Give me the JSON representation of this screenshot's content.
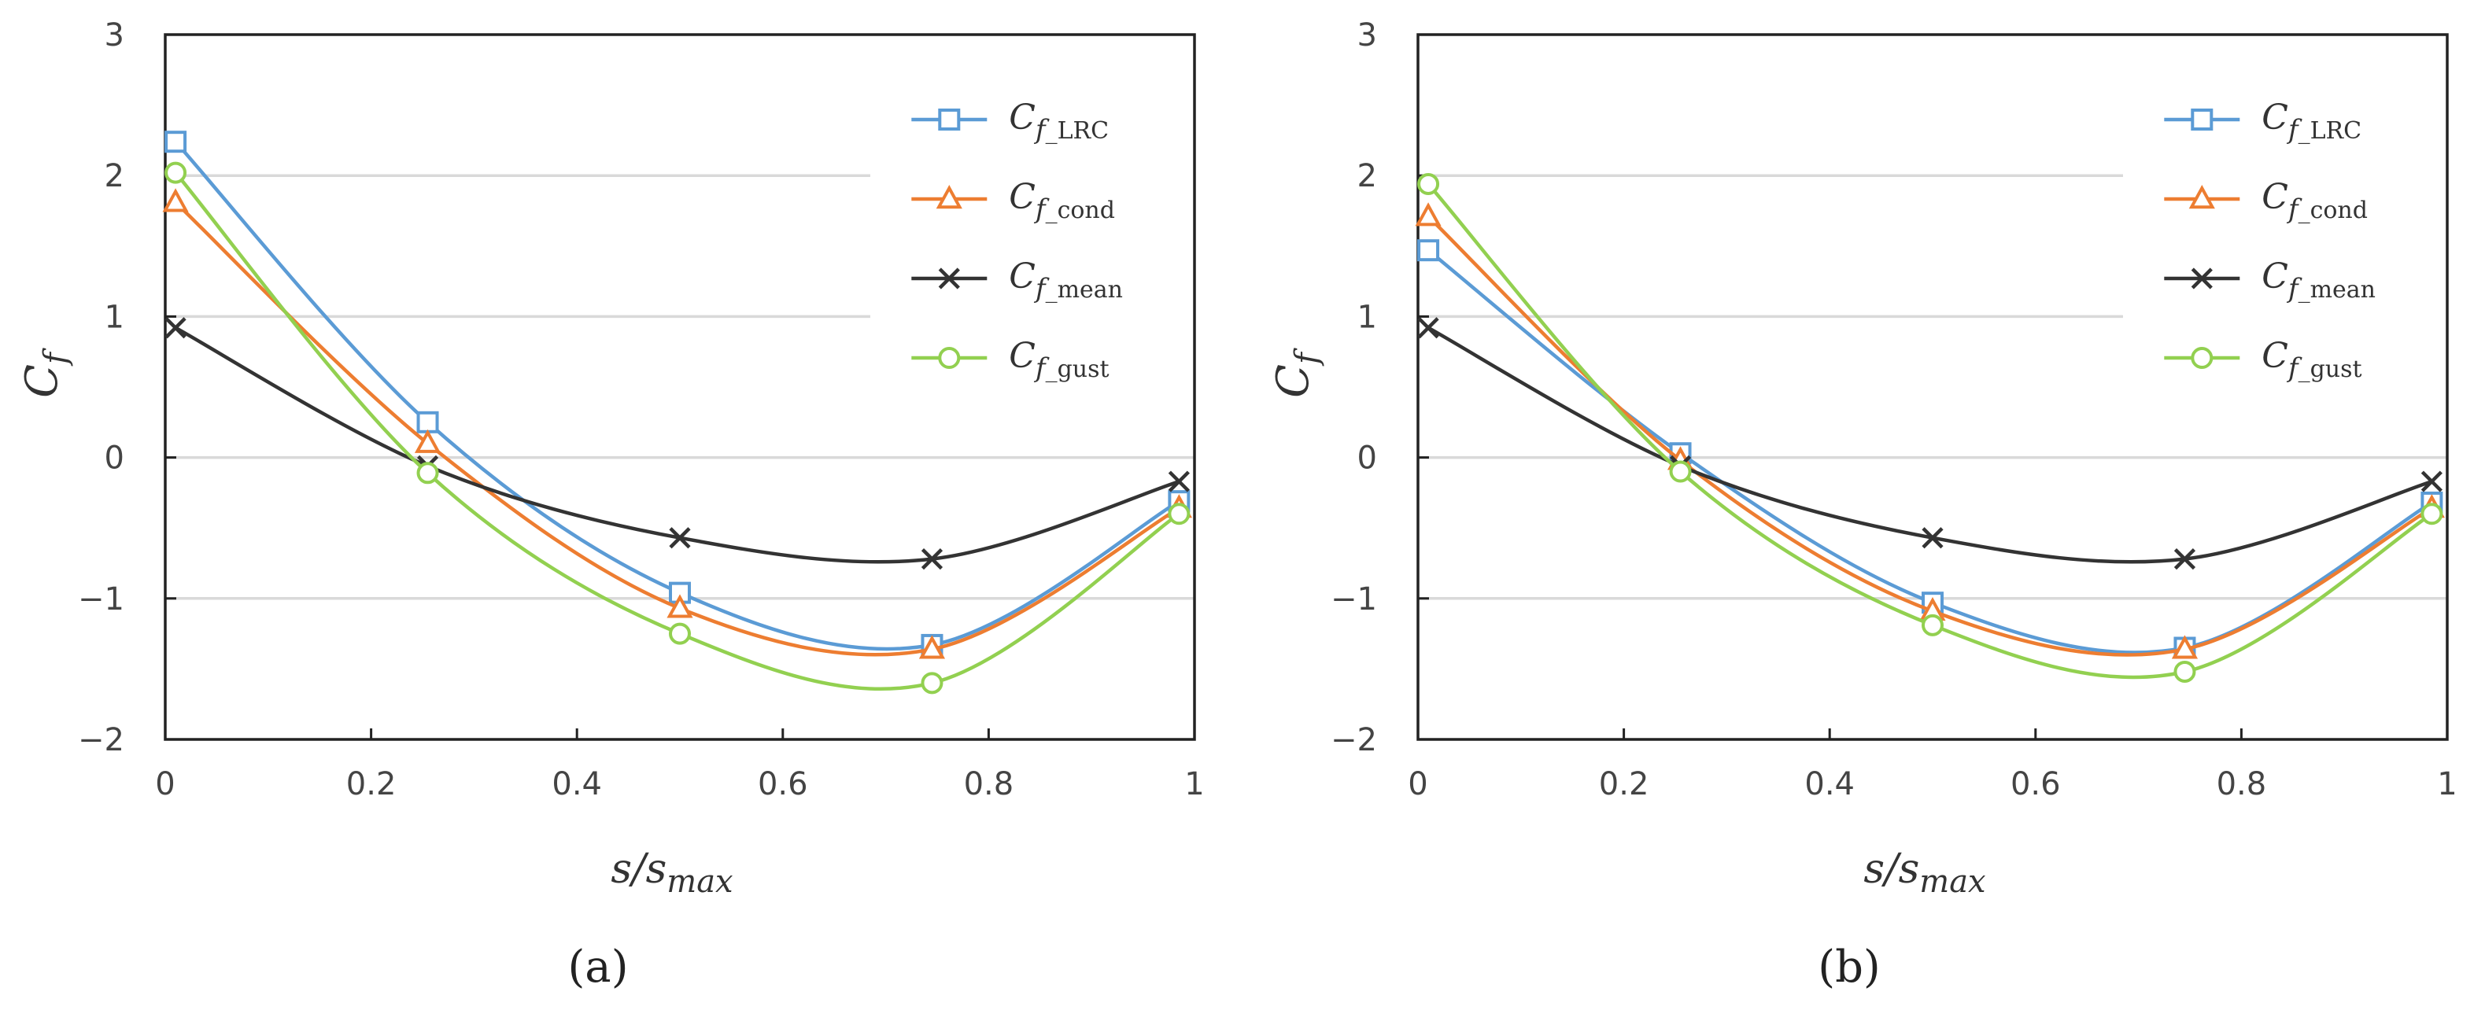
{
  "chart_data": [
    {
      "type": "line",
      "panel_label": "(a)",
      "xlabel": {
        "base": "s/s",
        "sub": "max"
      },
      "ylabel": {
        "base": "C",
        "sub": "f"
      },
      "xlim": [
        0,
        1
      ],
      "ylim": [
        -2,
        3
      ],
      "xticks": [
        0,
        0.2,
        0.4,
        0.6,
        0.8,
        1
      ],
      "xtick_labels": [
        "0",
        "0.2",
        "0.4",
        "0.6",
        "0.8",
        "1"
      ],
      "yticks": [
        -2,
        -1,
        0,
        1,
        2,
        3
      ],
      "ytick_labels": [
        "−2",
        "−1",
        "0",
        "1",
        "2",
        "3"
      ],
      "grid": "horizontal",
      "legend_position": "top-right",
      "series": [
        {
          "name": "C_f_LRC",
          "label_base": "C",
          "label_sub": "f",
          "label_tag": "_LRC",
          "color": "#5B9BD5",
          "marker": "square",
          "x": [
            0.01,
            0.255,
            0.5,
            0.745,
            0.985
          ],
          "values": [
            2.24,
            0.25,
            -0.96,
            -1.33,
            -0.31
          ]
        },
        {
          "name": "C_f_cond",
          "label_base": "C",
          "label_sub": "f",
          "label_tag": "_cond",
          "color": "#ED7D31",
          "marker": "triangle",
          "x": [
            0.01,
            0.255,
            0.5,
            0.745,
            0.985
          ],
          "values": [
            1.81,
            0.1,
            -1.07,
            -1.36,
            -0.36
          ]
        },
        {
          "name": "C_f_mean",
          "label_base": "C",
          "label_sub": "f",
          "label_tag": "_mean",
          "color": "#333333",
          "marker": "x",
          "x": [
            0.01,
            0.255,
            0.5,
            0.745,
            0.985
          ],
          "values": [
            0.92,
            -0.06,
            -0.57,
            -0.72,
            -0.17
          ]
        },
        {
          "name": "C_f_gust",
          "label_base": "C",
          "label_sub": "f",
          "label_tag": "_gust",
          "color": "#92D050",
          "marker": "circle",
          "x": [
            0.01,
            0.255,
            0.5,
            0.745,
            0.985
          ],
          "values": [
            2.02,
            -0.11,
            -1.25,
            -1.6,
            -0.4
          ]
        }
      ]
    },
    {
      "type": "line",
      "panel_label": "(b)",
      "xlabel": {
        "base": "s/s",
        "sub": "max"
      },
      "ylabel": {
        "base": "C",
        "sub": "f"
      },
      "xlim": [
        0,
        1
      ],
      "ylim": [
        -2,
        3
      ],
      "xticks": [
        0,
        0.2,
        0.4,
        0.6,
        0.8,
        1
      ],
      "xtick_labels": [
        "0",
        "0.2",
        "0.4",
        "0.6",
        "0.8",
        "1"
      ],
      "yticks": [
        -2,
        -1,
        0,
        1,
        2,
        3
      ],
      "ytick_labels": [
        "−2",
        "−1",
        "0",
        "1",
        "2",
        "3"
      ],
      "grid": "horizontal",
      "legend_position": "top-right",
      "series": [
        {
          "name": "C_f_LRC",
          "label_base": "C",
          "label_sub": "f",
          "label_tag": "_LRC",
          "color": "#5B9BD5",
          "marker": "square",
          "x": [
            0.01,
            0.255,
            0.5,
            0.745,
            0.985
          ],
          "values": [
            1.47,
            0.03,
            -1.03,
            -1.35,
            -0.32
          ]
        },
        {
          "name": "C_f_cond",
          "label_base": "C",
          "label_sub": "f",
          "label_tag": "_cond",
          "color": "#ED7D31",
          "marker": "triangle",
          "x": [
            0.01,
            0.255,
            0.5,
            0.745,
            0.985
          ],
          "values": [
            1.71,
            -0.02,
            -1.09,
            -1.36,
            -0.36
          ]
        },
        {
          "name": "C_f_mean",
          "label_base": "C",
          "label_sub": "f",
          "label_tag": "_mean",
          "color": "#333333",
          "marker": "x",
          "x": [
            0.01,
            0.255,
            0.5,
            0.745,
            0.985
          ],
          "values": [
            0.92,
            -0.06,
            -0.57,
            -0.72,
            -0.17
          ]
        },
        {
          "name": "C_f_gust",
          "label_base": "C",
          "label_sub": "f",
          "label_tag": "_gust",
          "color": "#92D050",
          "marker": "circle",
          "x": [
            0.01,
            0.255,
            0.5,
            0.745,
            0.985
          ],
          "values": [
            1.94,
            -0.1,
            -1.19,
            -1.52,
            -0.4
          ]
        }
      ]
    }
  ]
}
